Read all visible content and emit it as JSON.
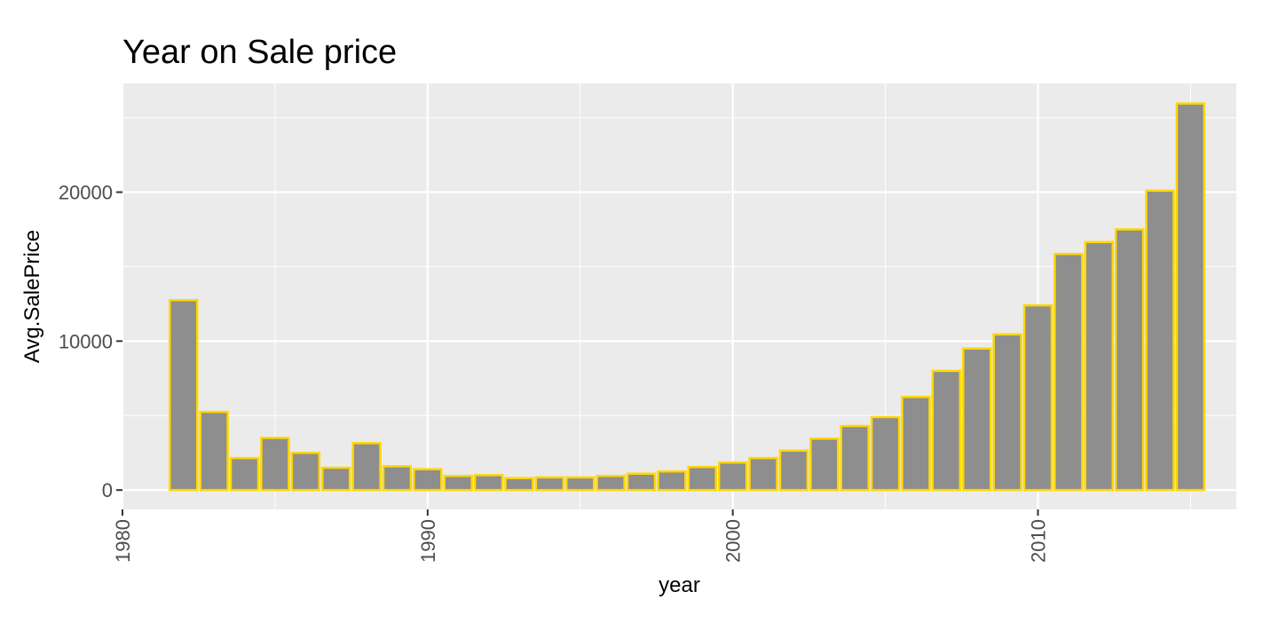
{
  "chart_data": {
    "type": "bar",
    "title": "Year on Sale price",
    "xlabel": "year",
    "ylabel": "Avg.SalePrice",
    "x": [
      1982,
      1983,
      1984,
      1985,
      1986,
      1987,
      1988,
      1989,
      1990,
      1991,
      1992,
      1993,
      1994,
      1995,
      1996,
      1997,
      1998,
      1999,
      2000,
      2001,
      2002,
      2003,
      2004,
      2005,
      2006,
      2007,
      2008,
      2009,
      2010,
      2011,
      2012,
      2013,
      2014,
      2015
    ],
    "values": [
      12750,
      5250,
      2150,
      3500,
      2500,
      1500,
      3150,
      1600,
      1400,
      950,
      1000,
      800,
      850,
      850,
      950,
      1100,
      1250,
      1550,
      1850,
      2150,
      2650,
      3450,
      4300,
      4900,
      6250,
      8000,
      9500,
      10450,
      12400,
      15850,
      16650,
      17500,
      20100,
      25950
    ],
    "xlim": [
      1980,
      2016.5
    ],
    "ylim": [
      -1300,
      27300
    ],
    "x_ticks": [
      1980,
      1990,
      2000,
      2010
    ],
    "y_ticks": [
      0,
      10000,
      20000
    ],
    "grid": true,
    "bar_fill": "#8e8e8e",
    "bar_outline": "#ffd700",
    "panel_background": "#ebebeb"
  }
}
